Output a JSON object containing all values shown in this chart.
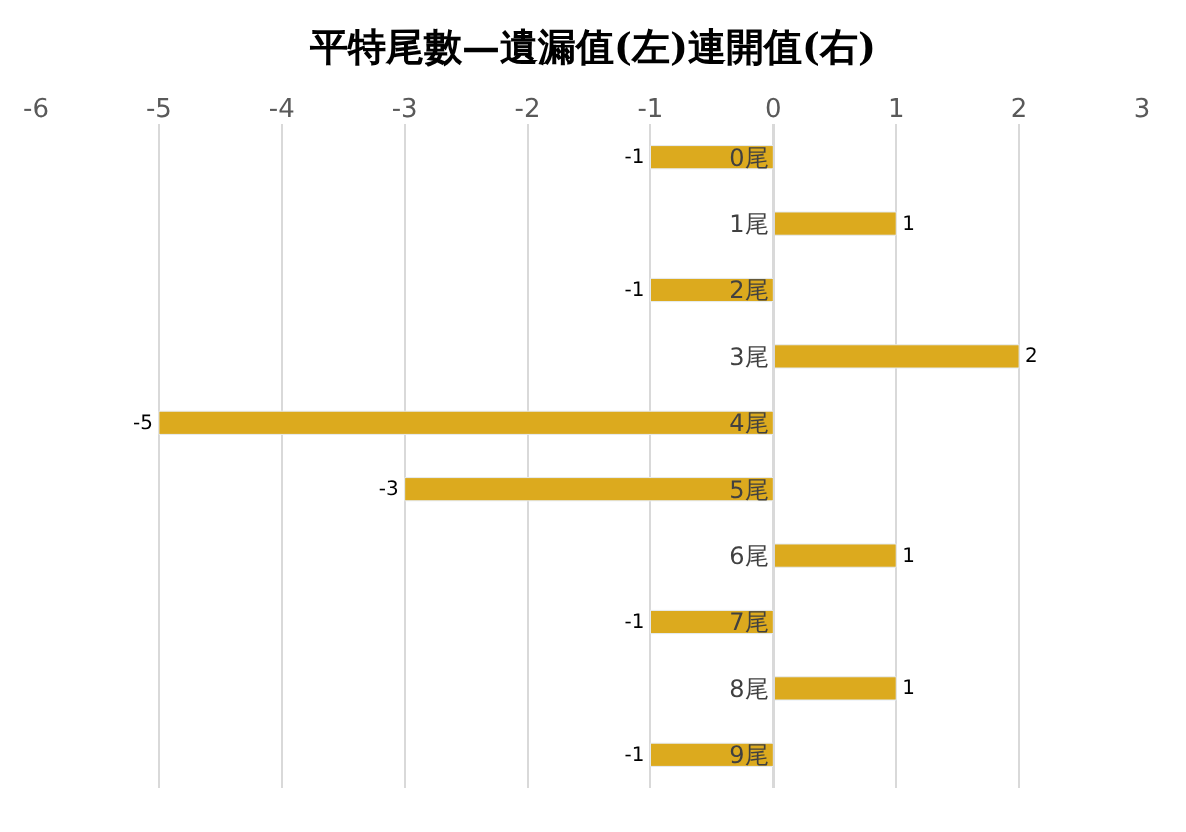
{
  "chart_data": {
    "type": "bar",
    "orientation": "horizontal",
    "title": "平特尾數—遺漏值(左)連開值(右)",
    "categories": [
      "0尾",
      "1尾",
      "2尾",
      "3尾",
      "4尾",
      "5尾",
      "6尾",
      "7尾",
      "8尾",
      "9尾"
    ],
    "values": [
      -1,
      1,
      -1,
      2,
      -5,
      -3,
      1,
      -1,
      1,
      -1
    ],
    "color": "#dcaa1e",
    "xlim": [
      -6,
      3
    ],
    "xticks": [
      -6,
      -5,
      -4,
      -3,
      -2,
      -1,
      0,
      1,
      2,
      3
    ],
    "grid": "x",
    "data_labels": true
  }
}
